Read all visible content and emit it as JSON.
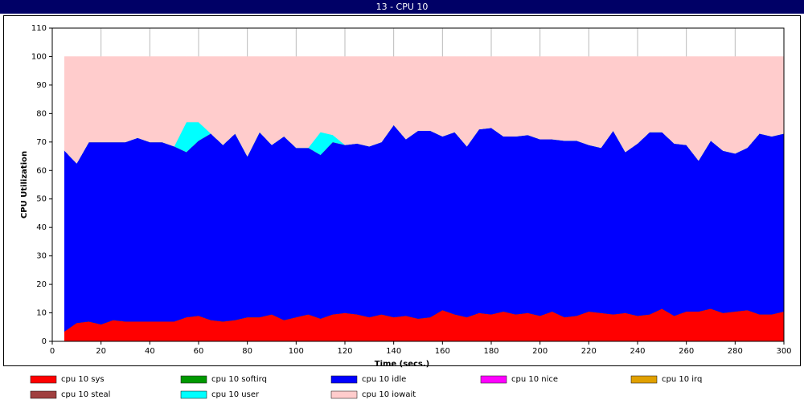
{
  "chart_data": {
    "type": "stacked-area",
    "title": "13 - CPU 10",
    "x_label": "Time (secs.)",
    "y_label": "CPU Utilization",
    "xlim": [
      0,
      300
    ],
    "ylim": [
      0,
      110
    ],
    "xticks": [
      0,
      20,
      40,
      60,
      80,
      100,
      120,
      140,
      160,
      180,
      200,
      220,
      240,
      260,
      280,
      300
    ],
    "yticks": [
      0,
      10,
      20,
      30,
      40,
      50,
      60,
      70,
      80,
      90,
      100,
      110
    ],
    "grid": "x",
    "x": [
      5,
      10,
      15,
      20,
      25,
      30,
      35,
      40,
      45,
      50,
      55,
      60,
      65,
      70,
      75,
      80,
      85,
      90,
      95,
      100,
      105,
      110,
      115,
      120,
      125,
      130,
      135,
      140,
      145,
      150,
      155,
      160,
      165,
      170,
      175,
      180,
      185,
      190,
      195,
      200,
      205,
      210,
      215,
      220,
      225,
      230,
      235,
      240,
      245,
      250,
      255,
      260,
      265,
      270,
      275,
      280,
      285,
      290,
      295,
      300
    ],
    "series": [
      {
        "name": "cpu 10 sys",
        "color": "#ff0000",
        "values": [
          3.5,
          6.5,
          7,
          6,
          7.5,
          7,
          7,
          7,
          7,
          7,
          8.5,
          9,
          7.5,
          7,
          7.5,
          8.5,
          8.5,
          9.5,
          7.5,
          8.5,
          9.5,
          8,
          9.5,
          10,
          9.5,
          8.5,
          9.5,
          8.5,
          9,
          8,
          8.5,
          11,
          9.5,
          8.5,
          10,
          9.5,
          10.5,
          9.5,
          10,
          9,
          10.5,
          8.5,
          9,
          10.5,
          10,
          9.5,
          10,
          9,
          9.5,
          11.5,
          9,
          10.5,
          10.5,
          11.5,
          10,
          10.5,
          11,
          9.5,
          9.5,
          10.5
        ]
      },
      {
        "name": "cpu 10 softirq",
        "color": "#009900",
        "values": [
          0,
          0,
          0,
          0,
          0,
          0,
          0,
          0,
          0,
          0,
          0,
          0,
          0,
          0,
          0,
          0,
          0,
          0,
          0,
          0,
          0,
          0,
          0,
          0,
          0,
          0,
          0,
          0,
          0,
          0,
          0,
          0,
          0,
          0,
          0,
          0,
          0,
          0,
          0,
          0,
          0,
          0,
          0,
          0,
          0,
          0,
          0,
          0,
          0,
          0,
          0,
          0,
          0,
          0,
          0,
          0,
          0,
          0,
          0,
          0
        ]
      },
      {
        "name": "cpu 10 idle",
        "color": "#0000ff",
        "values": [
          63.5,
          56,
          63,
          64,
          62.5,
          63,
          64.5,
          63,
          63,
          61.5,
          58,
          61.5,
          65.5,
          62,
          65.5,
          56.5,
          65,
          59.5,
          64.5,
          59.5,
          58.5,
          57.5,
          60.5,
          59,
          60,
          60,
          60.5,
          67.5,
          62,
          66,
          65.5,
          61,
          64,
          60,
          64.5,
          65.5,
          61.5,
          62.5,
          62.5,
          62,
          60.5,
          62,
          61.5,
          58.5,
          58,
          64.5,
          56.5,
          60.5,
          64,
          62,
          60.5,
          58.5,
          53,
          59,
          57,
          55.5,
          57,
          63.5,
          62.5,
          62.5
        ]
      },
      {
        "name": "cpu 10 nice",
        "color": "#ff00ff",
        "values": [
          0,
          0,
          0,
          0,
          0,
          0,
          0,
          0,
          0,
          0,
          0,
          0,
          0,
          0,
          0,
          0,
          0,
          0,
          0,
          0,
          0,
          0,
          0,
          0,
          0,
          0,
          0,
          0,
          0,
          0,
          0,
          0,
          0,
          0,
          0,
          0,
          0,
          0,
          0,
          0,
          0,
          0,
          0,
          0,
          0,
          0,
          0,
          0,
          0,
          0,
          0,
          0,
          0,
          0,
          0,
          0,
          0,
          0,
          0,
          0
        ]
      },
      {
        "name": "cpu 10 irq",
        "color": "#e0a000",
        "values": [
          0,
          0,
          0,
          0,
          0,
          0,
          0,
          0,
          0,
          0,
          0,
          0,
          0,
          0,
          0,
          0,
          0,
          0,
          0,
          0,
          0,
          0,
          0,
          0,
          0,
          0,
          0,
          0,
          0,
          0,
          0,
          0,
          0,
          0,
          0,
          0,
          0,
          0,
          0,
          0,
          0,
          0,
          0,
          0,
          0,
          0,
          0,
          0,
          0,
          0,
          0,
          0,
          0,
          0,
          0,
          0,
          0,
          0,
          0,
          0
        ]
      },
      {
        "name": "cpu 10 steal",
        "color": "#a04040",
        "values": [
          0,
          0,
          0,
          0,
          0,
          0,
          0,
          0,
          0,
          0,
          0,
          0,
          0,
          0,
          0,
          0,
          0,
          0,
          0,
          0,
          0,
          0,
          0,
          0,
          0,
          0,
          0,
          0,
          0,
          0,
          0,
          0,
          0,
          0,
          0,
          0,
          0,
          0,
          0,
          0,
          0,
          0,
          0,
          0,
          0,
          0,
          0,
          0,
          0,
          0,
          0,
          0,
          0,
          0,
          0,
          0,
          0,
          0,
          0,
          0
        ]
      },
      {
        "name": "cpu 10 user",
        "color": "#00ffff",
        "values": [
          0,
          0,
          0,
          0,
          0,
          0,
          0,
          0,
          0,
          0,
          10.5,
          6.5,
          0,
          0,
          0,
          0,
          0,
          0,
          0,
          0,
          0,
          8,
          2.5,
          0,
          0,
          0,
          0,
          0,
          0,
          0,
          0,
          0,
          0,
          0,
          0,
          0,
          0,
          0,
          0,
          0,
          0,
          0,
          0,
          0,
          0,
          0,
          0,
          0,
          0,
          0,
          0,
          0,
          0,
          0,
          0,
          0,
          0,
          0,
          0,
          0
        ]
      },
      {
        "name": "cpu 10 iowait",
        "color": "#ffcccc",
        "values": [
          33,
          37.5,
          30,
          30,
          30,
          30,
          28.5,
          30,
          30,
          31.5,
          23,
          23,
          27,
          31,
          27,
          35,
          26.5,
          31,
          28,
          32,
          32,
          26.5,
          27.5,
          31,
          30.5,
          31.5,
          30,
          24,
          29,
          26,
          26,
          28,
          26.5,
          31.5,
          25.5,
          25,
          28,
          28,
          27.5,
          29,
          29,
          29.5,
          29.5,
          31,
          32,
          26,
          33.5,
          30.5,
          26.5,
          26.5,
          30.5,
          31,
          36.5,
          29.5,
          33,
          34,
          32,
          27,
          28,
          27
        ]
      }
    ]
  }
}
